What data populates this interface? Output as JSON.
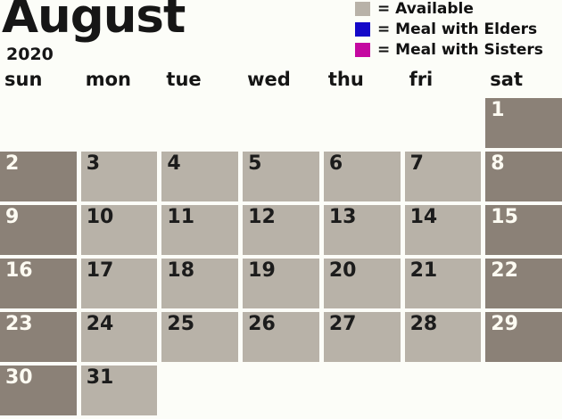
{
  "title": "August",
  "year": "2020",
  "legend": {
    "items": [
      {
        "name": "available",
        "label": "= Available",
        "color": "#b8b2a8"
      },
      {
        "name": "meal-with-elders",
        "label": "= Meal with Elders",
        "color": "#1408c8"
      },
      {
        "name": "meal-with-sisters",
        "label": "= Meal with Sisters",
        "color": "#c408a0"
      }
    ]
  },
  "calendar": {
    "weekday_headers": [
      "sun",
      "mon",
      "tue",
      "wed",
      "thu",
      "fri",
      "sat"
    ],
    "weeks": [
      [
        {
          "day": "",
          "type": "empty"
        },
        {
          "day": "",
          "type": "empty"
        },
        {
          "day": "",
          "type": "empty"
        },
        {
          "day": "",
          "type": "empty"
        },
        {
          "day": "",
          "type": "empty"
        },
        {
          "day": "",
          "type": "empty"
        },
        {
          "day": "1",
          "type": "weekend"
        }
      ],
      [
        {
          "day": "2",
          "type": "weekend"
        },
        {
          "day": "3",
          "type": "available"
        },
        {
          "day": "4",
          "type": "available"
        },
        {
          "day": "5",
          "type": "available"
        },
        {
          "day": "6",
          "type": "available"
        },
        {
          "day": "7",
          "type": "available"
        },
        {
          "day": "8",
          "type": "weekend"
        }
      ],
      [
        {
          "day": "9",
          "type": "weekend"
        },
        {
          "day": "10",
          "type": "available"
        },
        {
          "day": "11",
          "type": "available"
        },
        {
          "day": "12",
          "type": "available"
        },
        {
          "day": "13",
          "type": "available"
        },
        {
          "day": "14",
          "type": "available"
        },
        {
          "day": "15",
          "type": "weekend"
        }
      ],
      [
        {
          "day": "16",
          "type": "weekend"
        },
        {
          "day": "17",
          "type": "available"
        },
        {
          "day": "18",
          "type": "available"
        },
        {
          "day": "19",
          "type": "available"
        },
        {
          "day": "20",
          "type": "available"
        },
        {
          "day": "21",
          "type": "available"
        },
        {
          "day": "22",
          "type": "weekend"
        }
      ],
      [
        {
          "day": "23",
          "type": "weekend"
        },
        {
          "day": "24",
          "type": "available"
        },
        {
          "day": "25",
          "type": "available"
        },
        {
          "day": "26",
          "type": "available"
        },
        {
          "day": "27",
          "type": "available"
        },
        {
          "day": "28",
          "type": "available"
        },
        {
          "day": "29",
          "type": "weekend"
        }
      ],
      [
        {
          "day": "30",
          "type": "weekend"
        },
        {
          "day": "31",
          "type": "available"
        },
        {
          "day": "",
          "type": "empty"
        },
        {
          "day": "",
          "type": "empty"
        },
        {
          "day": "",
          "type": "empty"
        },
        {
          "day": "",
          "type": "empty"
        },
        {
          "day": "",
          "type": "empty"
        }
      ]
    ]
  },
  "colors": {
    "background": "#fcfdf8",
    "available_cell": "#b8b2a8",
    "weekend_cell": "#8b8177",
    "elders": "#1408c8",
    "sisters": "#c408a0"
  }
}
